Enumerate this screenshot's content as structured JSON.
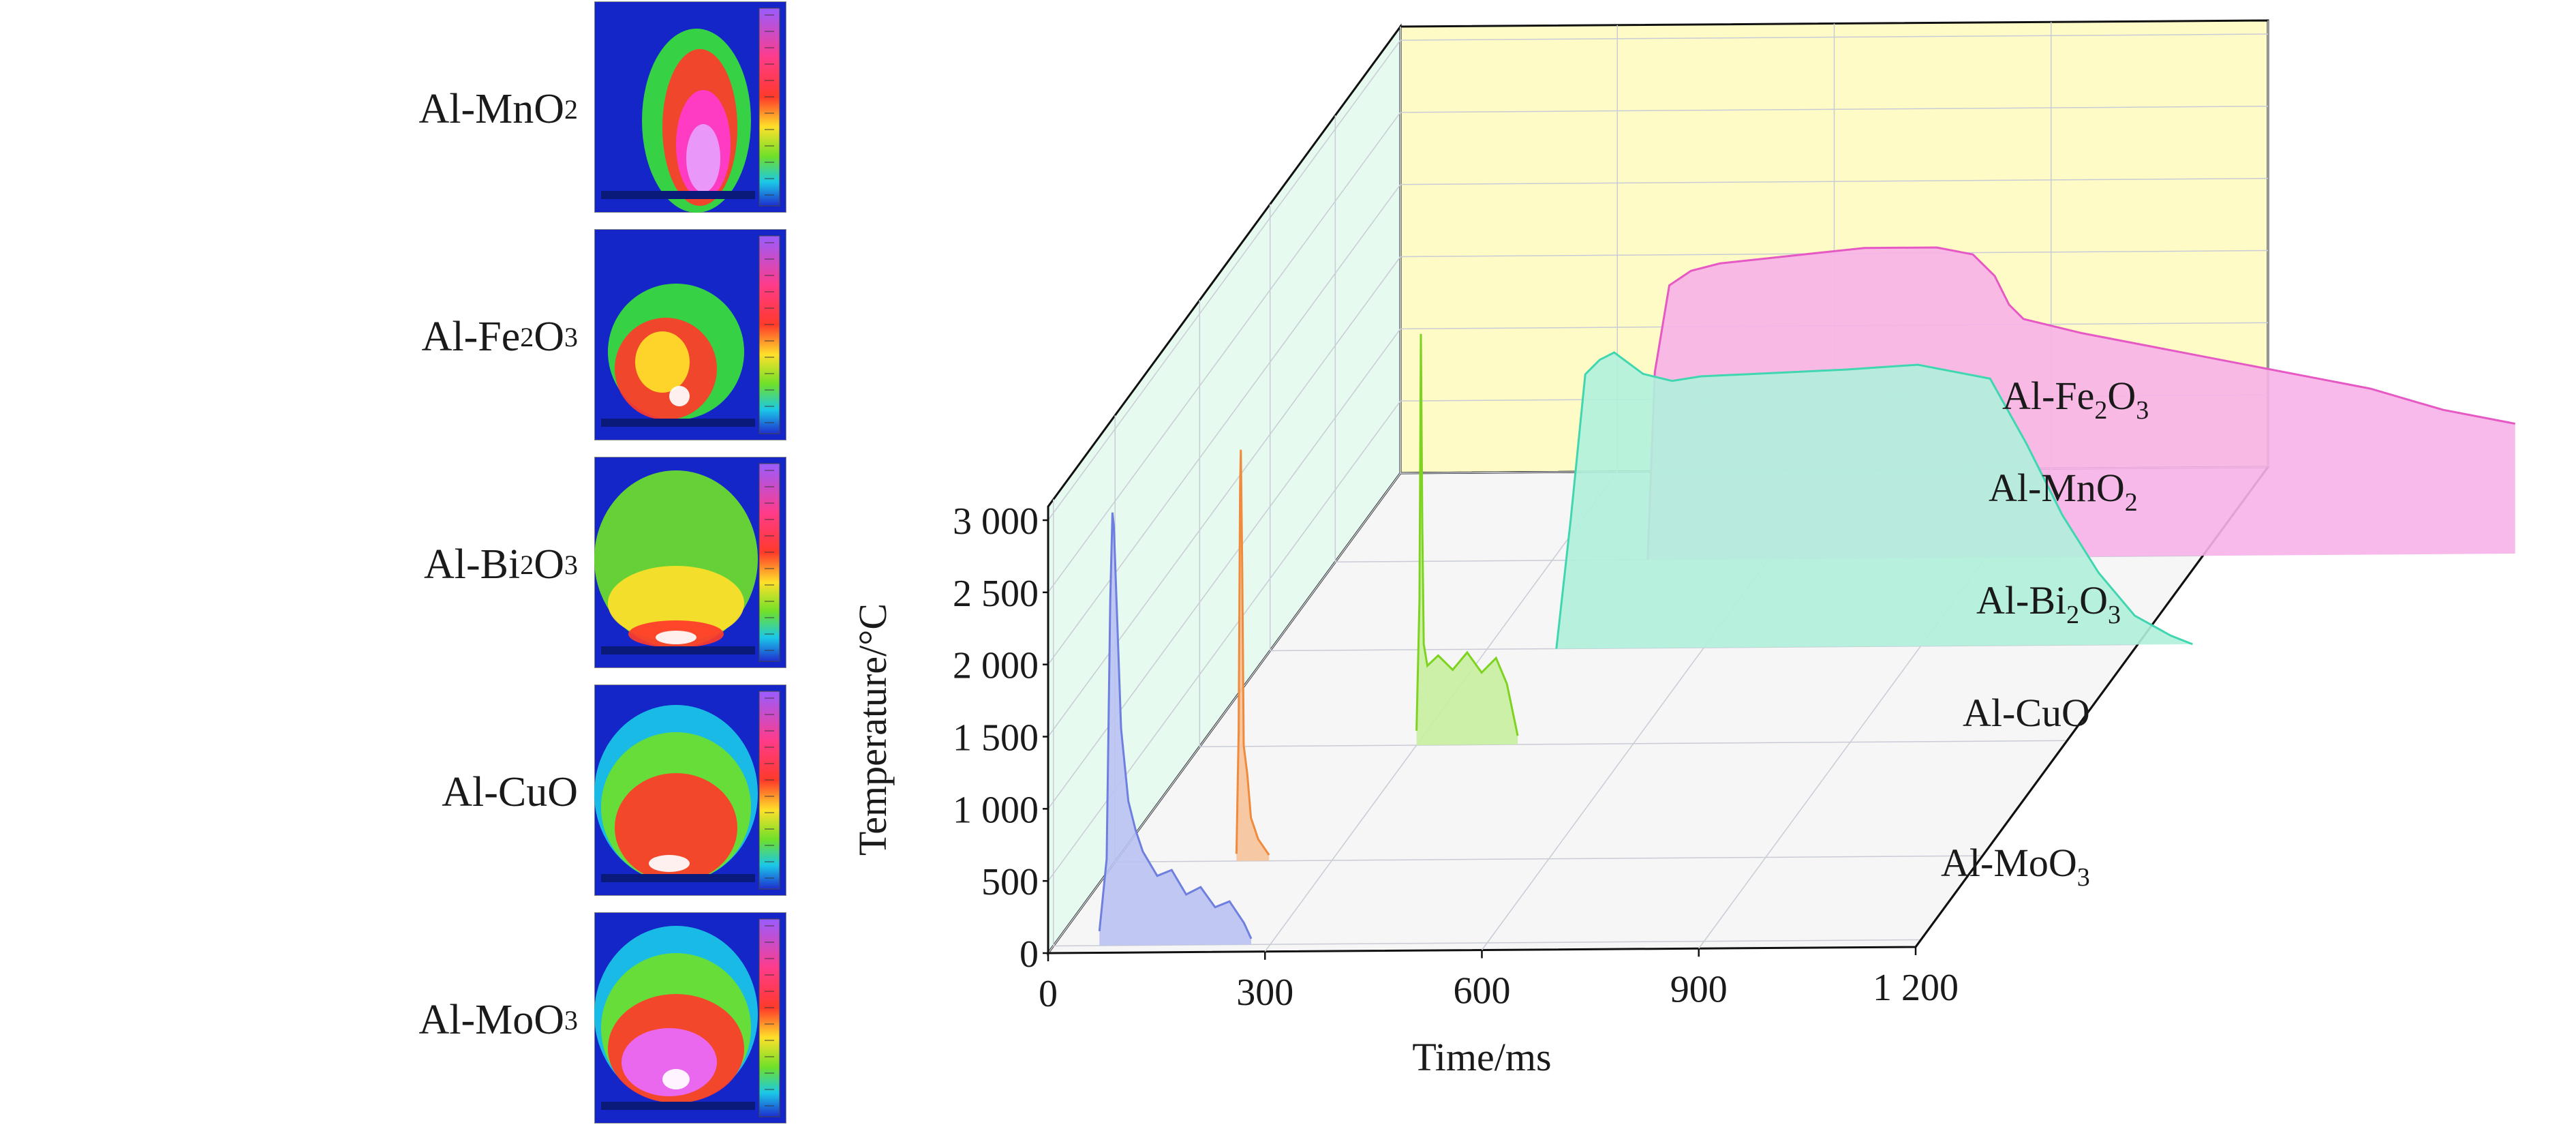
{
  "thermal_images": [
    {
      "formula": "Al-MnO",
      "subscript": "2",
      "icon": "thermal-image-icon"
    },
    {
      "formula": "Al-Fe",
      "subscript": "2",
      "tail": "O",
      "subscript2": "3",
      "icon": "thermal-image-icon"
    },
    {
      "formula": "Al-Bi",
      "subscript": "2",
      "tail": "O",
      "subscript2": "3",
      "icon": "thermal-image-icon"
    },
    {
      "formula": "Al-CuO",
      "subscript": "",
      "icon": "thermal-image-icon"
    },
    {
      "formula": "Al-MoO",
      "subscript": "3",
      "icon": "thermal-image-icon"
    }
  ],
  "chart_data": {
    "type": "line",
    "title": "",
    "xlabel": "Time/ms",
    "ylabel": "Temperature/°C",
    "xlim": [
      0,
      1200
    ],
    "ylim": [
      0,
      3000
    ],
    "x_ticks": [
      0,
      300,
      600,
      900,
      1200
    ],
    "x_tick_labels": [
      "0",
      "300",
      "600",
      "900",
      "1 200"
    ],
    "y_ticks": [
      0,
      500,
      1000,
      1500,
      2000,
      2500,
      3000
    ],
    "y_tick_labels": [
      "0",
      "500",
      "1 000",
      "1 500",
      "2 000",
      "2 500",
      "3 000"
    ],
    "depth_axis_labels": [
      {
        "text": "Al-MoO",
        "sub": "3"
      },
      {
        "text": "Al-CuO",
        "sub": ""
      },
      {
        "text": "Al-Bi",
        "sub": "2",
        "tail": "O",
        "sub2": "3"
      },
      {
        "text": "Al-MnO",
        "sub": "2"
      },
      {
        "text": "Al-Fe",
        "sub": "2",
        "tail": "O",
        "sub2": "3"
      }
    ],
    "series": [
      {
        "name": "Al-MoO3",
        "color": "#6f7fe0",
        "fill": "#b9c2f2",
        "x": [
          0,
          10,
          15,
          18,
          20,
          25,
          30,
          40,
          50,
          60,
          80,
          100,
          120,
          140,
          160,
          180,
          200,
          210
        ],
        "y": [
          100,
          600,
          2400,
          3000,
          2900,
          2200,
          1500,
          1000,
          800,
          650,
          480,
          520,
          350,
          400,
          260,
          300,
          150,
          40
        ]
      },
      {
        "name": "Al-CuO",
        "color": "#f08a3c",
        "fill": "#f6c39a",
        "x": [
          0,
          3,
          5,
          6,
          8,
          10,
          15,
          20,
          30,
          45
        ],
        "y": [
          50,
          900,
          2600,
          2850,
          2000,
          800,
          600,
          300,
          150,
          40
        ]
      },
      {
        "name": "Al-Bi2O3",
        "color": "#7ed321",
        "fill": "#c8ef9f",
        "x": [
          0,
          4,
          6,
          8,
          10,
          15,
          30,
          50,
          70,
          90,
          110,
          125,
          140
        ],
        "y": [
          100,
          1000,
          2850,
          1500,
          700,
          550,
          620,
          520,
          640,
          500,
          600,
          420,
          60
        ]
      },
      {
        "name": "Al-MnO2",
        "color": "#3fd6b0",
        "fill": "#b0f1dc",
        "x": [
          0,
          20,
          40,
          60,
          80,
          120,
          160,
          200,
          300,
          400,
          500,
          550,
          600,
          650,
          700,
          750,
          800,
          850,
          880
        ],
        "y": [
          0,
          900,
          1900,
          2000,
          2050,
          1900,
          1850,
          1880,
          1900,
          1920,
          1950,
          1900,
          1850,
          1400,
          900,
          500,
          200,
          60,
          0
        ]
      },
      {
        "name": "Al-Fe2O3",
        "color": "#e659c4",
        "fill": "#f7b3e8",
        "x": [
          0,
          10,
          30,
          60,
          100,
          200,
          300,
          400,
          450,
          480,
          500,
          520,
          560,
          600,
          700,
          800,
          900,
          1000,
          1100,
          1200
        ],
        "y": [
          0,
          1300,
          1900,
          2000,
          2050,
          2100,
          2150,
          2150,
          2100,
          1950,
          1750,
          1650,
          1600,
          1550,
          1450,
          1350,
          1250,
          1150,
          1000,
          900
        ]
      }
    ]
  }
}
